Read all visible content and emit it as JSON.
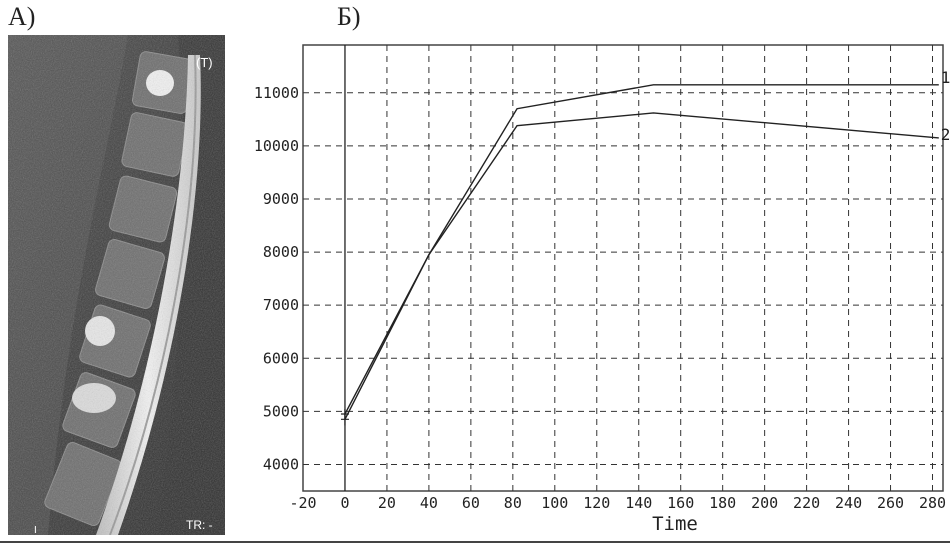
{
  "panels": {
    "a_label": "А)",
    "b_label": "Б)"
  },
  "mri": {
    "corner_top_right": "(T)",
    "corner_bottom_right": "TR: -",
    "corner_bottom_left": "I"
  },
  "chart_data": {
    "type": "line",
    "title": "",
    "xlabel": "Time",
    "ylabel": "",
    "xlim": [
      -20,
      285
    ],
    "ylim": [
      3500,
      11900
    ],
    "xticks": [
      -20,
      0,
      20,
      40,
      60,
      80,
      100,
      120,
      140,
      160,
      180,
      200,
      220,
      240,
      260,
      280
    ],
    "yticks": [
      4000,
      5000,
      6000,
      7000,
      8000,
      9000,
      10000,
      11000
    ],
    "grid": true,
    "series": [
      {
        "name": "1",
        "x": [
          0,
          40,
          82,
          147,
          283
        ],
        "y": [
          4950,
          7950,
          10700,
          11150,
          11150
        ]
      },
      {
        "name": "2",
        "x": [
          0,
          40,
          82,
          147,
          283
        ],
        "y": [
          4850,
          7950,
          10380,
          10620,
          10150
        ]
      }
    ]
  }
}
